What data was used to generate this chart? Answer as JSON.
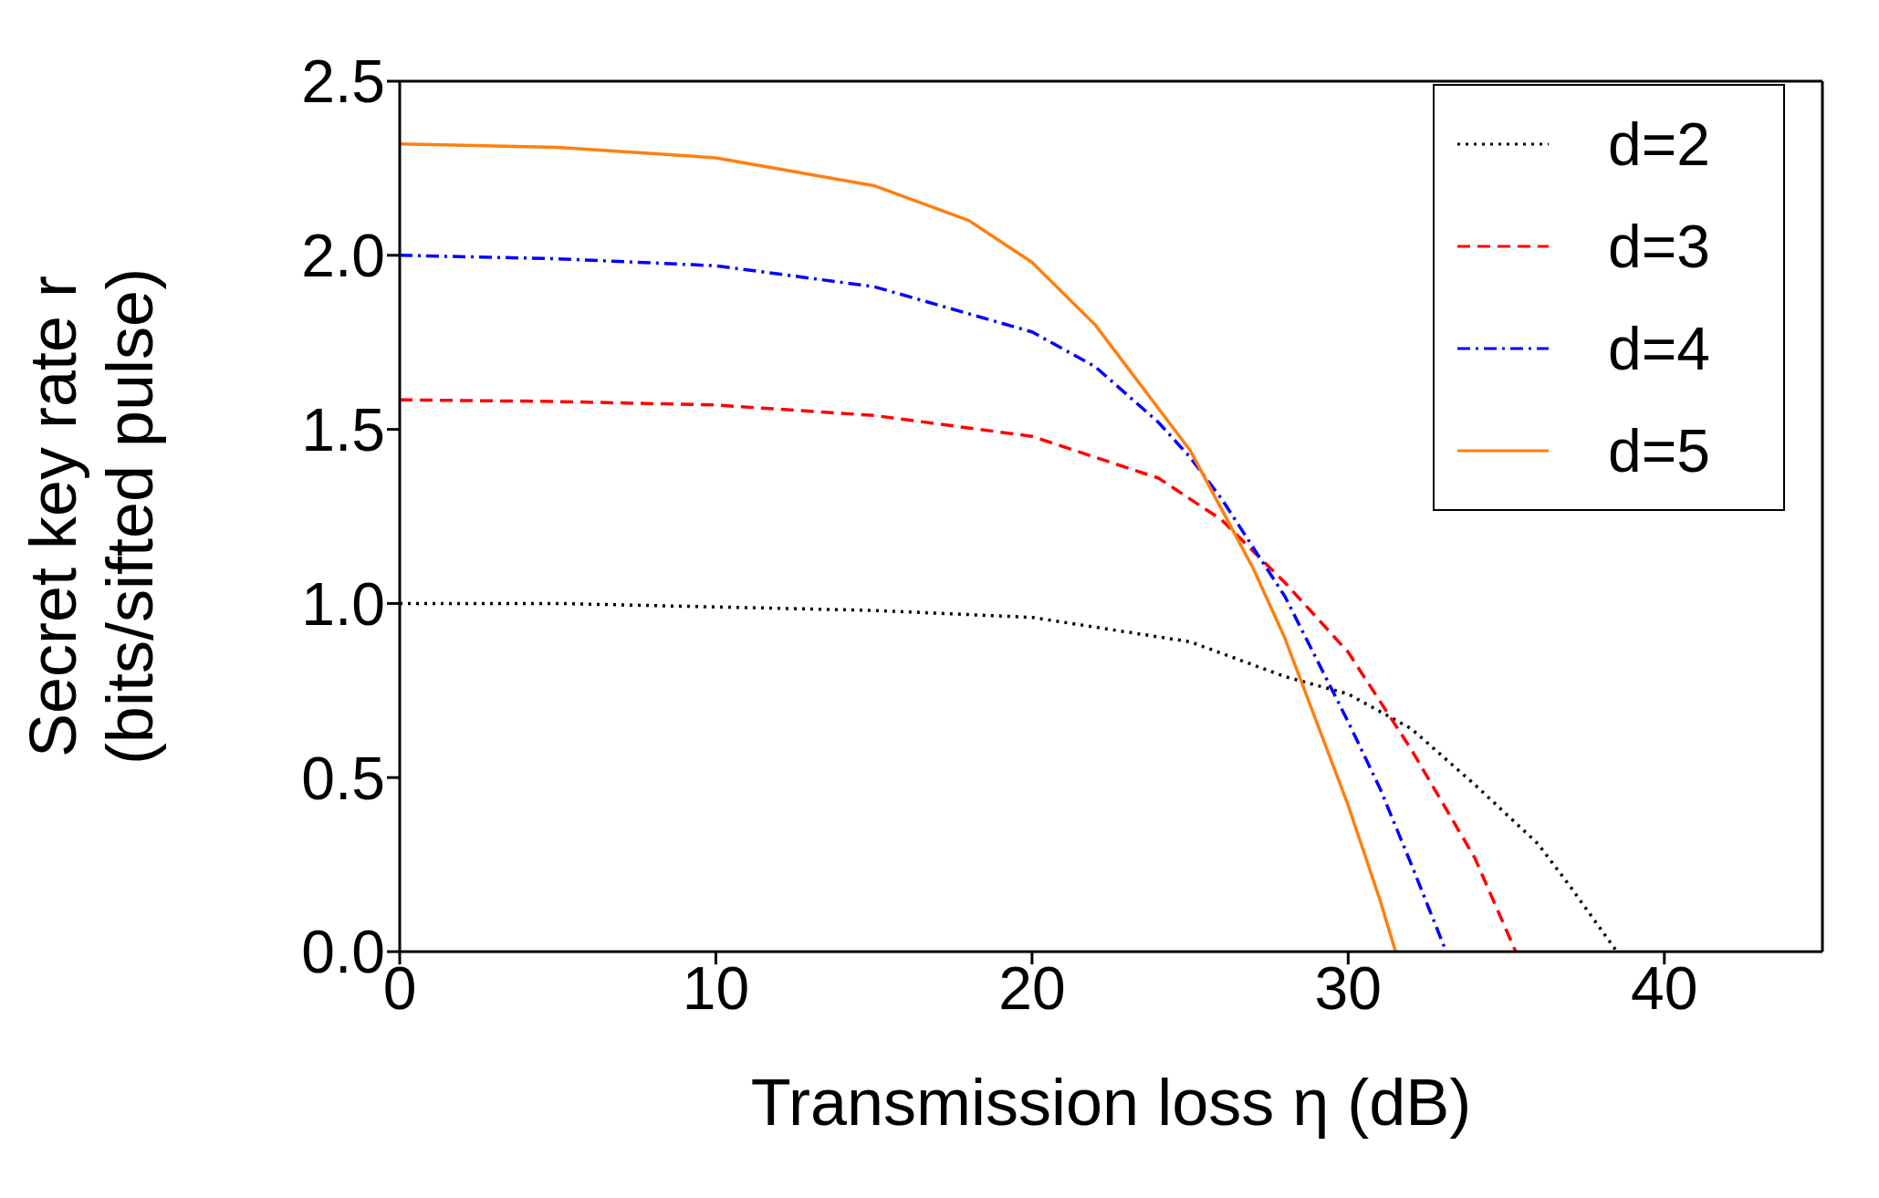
{
  "chart_data": {
    "type": "line",
    "xlabel": "Transmission loss η (dB)",
    "ylabel": "Secret key rate r\n(bits/sifted pulse)",
    "xlim": [
      0,
      45
    ],
    "xticks": [
      0,
      10,
      20,
      30,
      40
    ],
    "ylim": [
      0,
      2.5
    ],
    "yticks": [
      {
        "value": 0,
        "label": "0.0"
      },
      {
        "value": 0.5,
        "label": "0.5"
      },
      {
        "value": 1,
        "label": "1.0"
      },
      {
        "value": 1.5,
        "label": "1.5"
      },
      {
        "value": 2,
        "label": "2.0"
      },
      {
        "value": 2.5,
        "label": "2.5"
      }
    ],
    "grid": false,
    "legend": "top right",
    "marker": "none",
    "series": [
      {
        "name": "d=2",
        "color": "#000000",
        "line_style": "dotted",
        "x": [
          0,
          5,
          10,
          15,
          20,
          25,
          28,
          30,
          32,
          34,
          36,
          37,
          38.5
        ],
        "values": [
          1.0,
          1.0,
          0.99,
          0.98,
          0.96,
          0.89,
          0.79,
          0.74,
          0.64,
          0.48,
          0.31,
          0.19,
          0
        ]
      },
      {
        "name": "d=3",
        "color": "#ff0000",
        "line_style": "dashed",
        "x": [
          0,
          5,
          10,
          15,
          20,
          24,
          26,
          28,
          30,
          32,
          34,
          35.3
        ],
        "values": [
          1.585,
          1.58,
          1.57,
          1.54,
          1.48,
          1.36,
          1.24,
          1.06,
          0.86,
          0.58,
          0.27,
          0
        ]
      },
      {
        "name": "d=4",
        "color": "#0000ff",
        "line_style": "dashdot",
        "x": [
          0,
          5,
          10,
          15,
          20,
          22,
          24,
          25,
          26,
          28,
          30,
          31,
          32,
          33.1
        ],
        "values": [
          2.0,
          1.99,
          1.97,
          1.91,
          1.78,
          1.68,
          1.52,
          1.42,
          1.3,
          1.02,
          0.66,
          0.47,
          0.25,
          0
        ]
      },
      {
        "name": "d=5",
        "color": "#ff7f0e",
        "line_style": "solid",
        "x": [
          0,
          5,
          10,
          15,
          18,
          20,
          22,
          24,
          25,
          26,
          27,
          28,
          29,
          30,
          31,
          31.5
        ],
        "values": [
          2.32,
          2.31,
          2.28,
          2.2,
          2.1,
          1.98,
          1.8,
          1.56,
          1.44,
          1.27,
          1.1,
          0.9,
          0.66,
          0.42,
          0.15,
          0
        ]
      }
    ]
  }
}
